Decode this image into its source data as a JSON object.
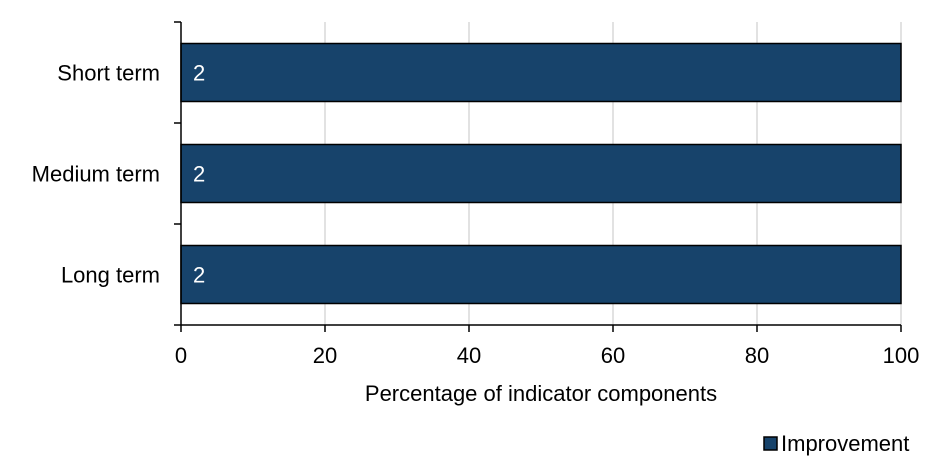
{
  "chart_data": {
    "type": "bar",
    "orientation": "horizontal",
    "stacked": true,
    "categories": [
      "Short term",
      "Medium term",
      "Long term"
    ],
    "series": [
      {
        "name": "Improvement",
        "values": [
          100,
          100,
          100
        ],
        "data_labels": [
          "2",
          "2",
          "2"
        ],
        "color": "#17436b"
      }
    ],
    "xlabel": "Percentage of indicator components",
    "ylabel": "",
    "xlim": [
      0,
      100
    ],
    "xticks": [
      0,
      20,
      40,
      60,
      80,
      100
    ],
    "xtick_labels": [
      "0",
      "20",
      "40",
      "60",
      "80",
      "100"
    ],
    "grid": "vertical",
    "legend_position": "bottom-right",
    "colors": {
      "bar": "#17436b",
      "bar_border": "#000000",
      "gridline": "#d9d9d9",
      "axis": "#000000"
    }
  }
}
